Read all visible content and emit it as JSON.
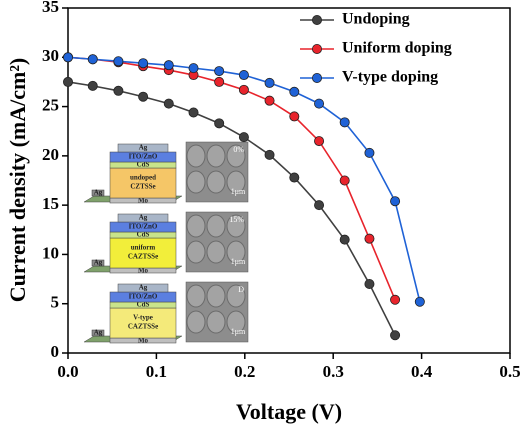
{
  "chart_data": {
    "type": "line",
    "xlabel": "Voltage (V)",
    "ylabel": "Current density (mA/cm²)",
    "xlim": [
      0,
      0.5
    ],
    "ylim": [
      0,
      35
    ],
    "xticks": [
      {
        "value": 0,
        "label": "0.0"
      },
      {
        "value": 0.1,
        "label": "0.1"
      },
      {
        "value": 0.2,
        "label": "0.2"
      },
      {
        "value": 0.3,
        "label": "0.3"
      },
      {
        "value": 0.4,
        "label": "0.4"
      },
      {
        "value": 0.5,
        "label": "0.5"
      }
    ],
    "yticks": [
      0,
      5,
      10,
      15,
      20,
      25,
      30,
      35
    ],
    "legend": "upper right",
    "series": [
      {
        "name": "Undoping",
        "color": "#404040",
        "x": [
          0,
          0.028,
          0.057,
          0.085,
          0.114,
          0.142,
          0.171,
          0.199,
          0.228,
          0.256,
          0.284,
          0.313,
          0.341,
          0.37
        ],
        "values": [
          27.5,
          27.1,
          26.6,
          26.0,
          25.3,
          24.4,
          23.3,
          21.9,
          20.1,
          17.8,
          15.0,
          11.5,
          7.0,
          1.8
        ]
      },
      {
        "name": "Uniform doping",
        "color": "#e8242c",
        "x": [
          0,
          0.028,
          0.057,
          0.085,
          0.114,
          0.142,
          0.171,
          0.199,
          0.228,
          0.256,
          0.284,
          0.313,
          0.341,
          0.37
        ],
        "values": [
          30.0,
          29.8,
          29.5,
          29.1,
          28.7,
          28.2,
          27.5,
          26.7,
          25.6,
          24.0,
          21.5,
          17.5,
          11.6,
          5.4
        ]
      },
      {
        "name": "V-type doping",
        "color": "#1f62d6",
        "x": [
          0,
          0.028,
          0.057,
          0.085,
          0.114,
          0.142,
          0.171,
          0.199,
          0.228,
          0.256,
          0.284,
          0.313,
          0.341,
          0.37,
          0.398
        ],
        "values": [
          30.0,
          29.8,
          29.6,
          29.4,
          29.2,
          28.9,
          28.6,
          28.2,
          27.4,
          26.5,
          25.3,
          23.4,
          20.3,
          15.4,
          5.2
        ]
      }
    ],
    "insets": [
      {
        "top": "Ag",
        "window": "ITO/ZnO",
        "buffer": "CdS",
        "absorber": [
          "undoped",
          "CZTSSe"
        ],
        "back": "Mo",
        "contact": "Ag",
        "sem": "0%",
        "scale": "1μm",
        "color": "#f5c667"
      },
      {
        "top": "Ag",
        "window": "ITO/ZnO",
        "buffer": "CdS",
        "absorber": [
          "uniform",
          "CAZTSSe"
        ],
        "back": "Mo",
        "contact": "Ag",
        "sem": "15%",
        "scale": "1μm",
        "color": "#f2ee3a"
      },
      {
        "top": "Ag",
        "window": "ITO/ZnO",
        "buffer": "CdS",
        "absorber": [
          "V-type",
          "CAZTSSe"
        ],
        "back": "Mo",
        "contact": "Ag",
        "sem": "D",
        "scale": "1μm",
        "color": "#f4ea7a"
      }
    ]
  }
}
